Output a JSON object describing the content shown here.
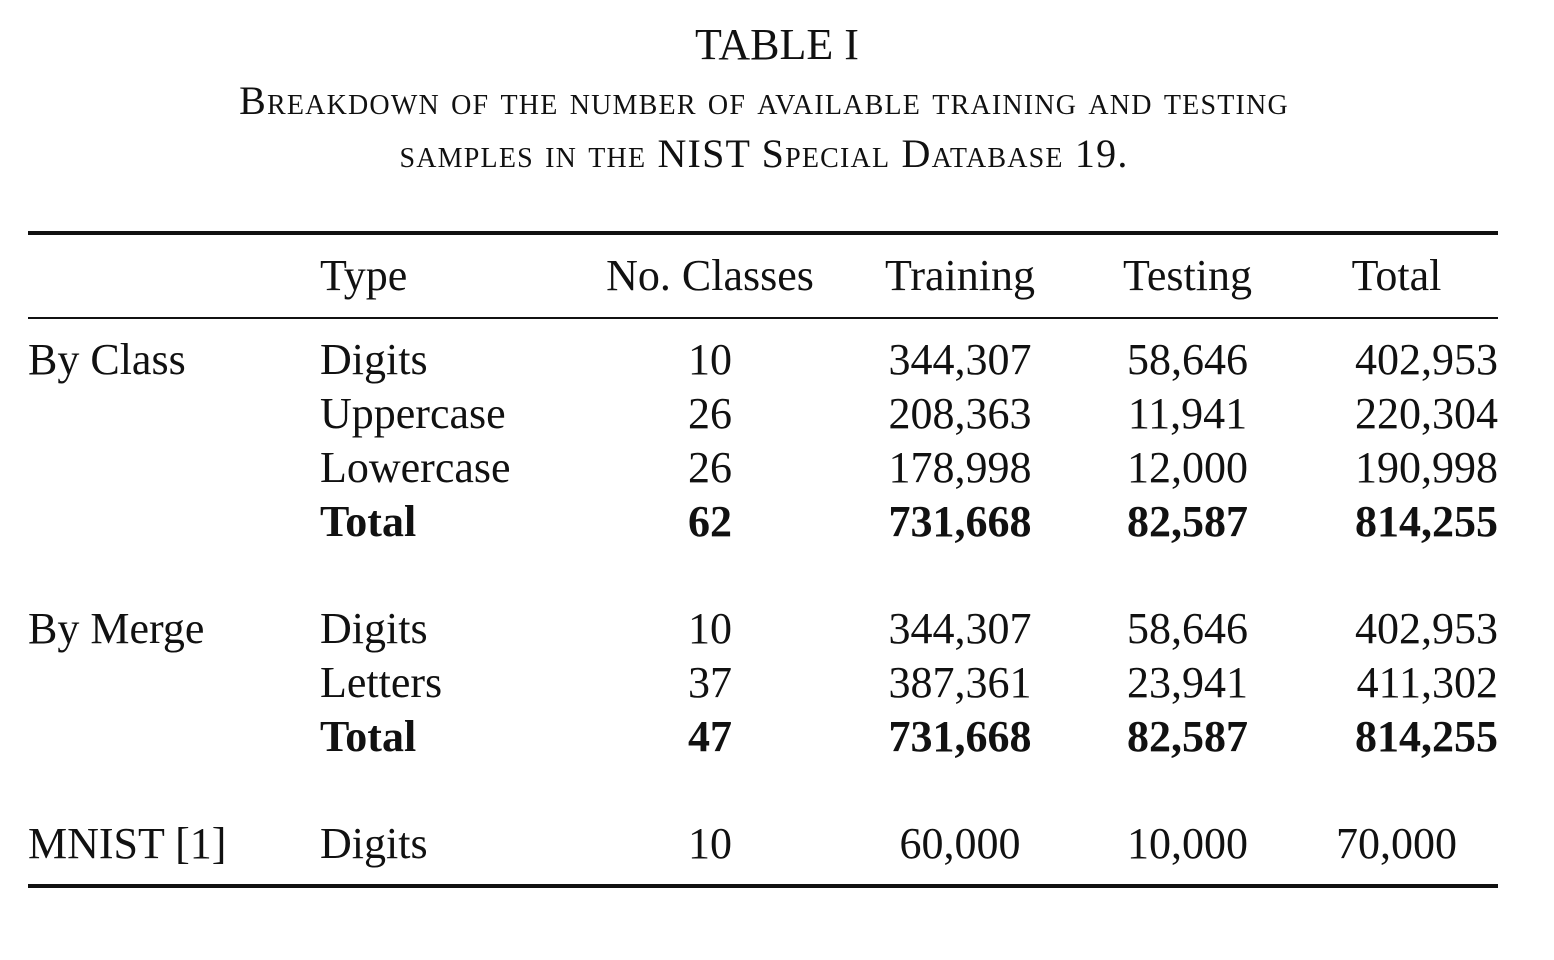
{
  "table_label": "TABLE I",
  "caption_line1": "Breakdown of the number of available training and testing",
  "caption_line2": "samples in the NIST Special Database 19.",
  "headers": {
    "group": "",
    "type": "Type",
    "classes": "No. Classes",
    "training": "Training",
    "testing": "Testing",
    "total": "Total"
  },
  "sections": [
    {
      "group": "By Class",
      "rows": [
        {
          "type": "Digits",
          "classes": "10",
          "training": "344,307",
          "testing": "58,646",
          "total": "402,953"
        },
        {
          "type": "Uppercase",
          "classes": "26",
          "training": "208,363",
          "testing": "11,941",
          "total": "220,304"
        },
        {
          "type": "Lowercase",
          "classes": "26",
          "training": "178,998",
          "testing": "12,000",
          "total": "190,998"
        },
        {
          "type": "Total",
          "classes": "62",
          "training": "731,668",
          "testing": "82,587",
          "total": "814,255"
        }
      ]
    },
    {
      "group": "By Merge",
      "rows": [
        {
          "type": "Digits",
          "classes": "10",
          "training": "344,307",
          "testing": "58,646",
          "total": "402,953"
        },
        {
          "type": "Letters",
          "classes": "37",
          "training": "387,361",
          "testing": "23,941",
          "total": "411,302"
        },
        {
          "type": "Total",
          "classes": "47",
          "training": "731,668",
          "testing": "82,587",
          "total": "814,255"
        }
      ]
    },
    {
      "group": "MNIST [1]",
      "rows": [
        {
          "type": "Digits",
          "classes": "10",
          "training": "60,000",
          "testing": "10,000",
          "total": "70,000"
        }
      ]
    }
  ]
}
